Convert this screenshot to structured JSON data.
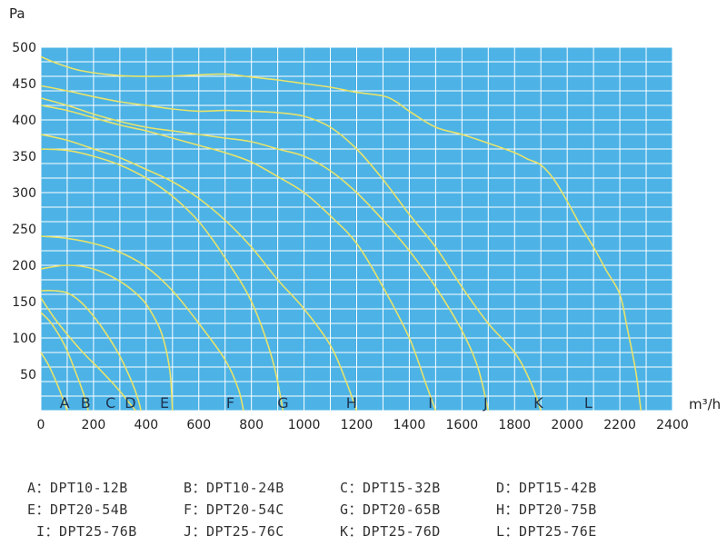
{
  "chart_data": {
    "type": "line",
    "title": "",
    "xlabel": "m³/h",
    "ylabel": "Pa",
    "xlim": [
      0,
      2400
    ],
    "ylim": [
      0,
      500
    ],
    "x_ticks": [
      "0",
      "200",
      "400",
      "600",
      "800",
      "1000",
      "1200",
      "1400",
      "1600",
      "1800",
      "2000",
      "2200",
      "2400"
    ],
    "y_ticks": [
      "50",
      "100",
      "150",
      "200",
      "250",
      "300",
      "350",
      "400",
      "450",
      "500"
    ],
    "grid": true,
    "background_color": "#4db3e6",
    "grid_color": "#ffffff",
    "line_color": "#e8e36b",
    "series": [
      {
        "name": "A",
        "label": "A",
        "label_x": 90,
        "points": [
          [
            0,
            80
          ],
          [
            30,
            62
          ],
          [
            60,
            38
          ],
          [
            85,
            15
          ],
          [
            100,
            0
          ]
        ]
      },
      {
        "name": "B",
        "label": "B",
        "label_x": 170,
        "points": [
          [
            0,
            135
          ],
          [
            40,
            120
          ],
          [
            90,
            90
          ],
          [
            130,
            55
          ],
          [
            165,
            20
          ],
          [
            180,
            0
          ]
        ]
      },
      {
        "name": "C",
        "label": "C",
        "label_x": 265,
        "points": [
          [
            0,
            155
          ],
          [
            50,
            128
          ],
          [
            100,
            105
          ],
          [
            160,
            80
          ],
          [
            220,
            58
          ],
          [
            280,
            35
          ],
          [
            320,
            18
          ],
          [
            360,
            0
          ]
        ]
      },
      {
        "name": "D",
        "label": "D",
        "label_x": 340,
        "points": [
          [
            0,
            165
          ],
          [
            50,
            165
          ],
          [
            100,
            162
          ],
          [
            150,
            150
          ],
          [
            200,
            130
          ],
          [
            250,
            105
          ],
          [
            300,
            75
          ],
          [
            345,
            40
          ],
          [
            370,
            15
          ],
          [
            380,
            0
          ]
        ]
      },
      {
        "name": "E",
        "label": "E",
        "label_x": 470,
        "points": [
          [
            0,
            195
          ],
          [
            100,
            200
          ],
          [
            200,
            195
          ],
          [
            300,
            178
          ],
          [
            380,
            155
          ],
          [
            420,
            135
          ],
          [
            460,
            105
          ],
          [
            490,
            55
          ],
          [
            500,
            0
          ]
        ]
      },
      {
        "name": "F",
        "label": "F",
        "label_x": 720,
        "points": [
          [
            0,
            240
          ],
          [
            100,
            237
          ],
          [
            200,
            230
          ],
          [
            300,
            218
          ],
          [
            400,
            198
          ],
          [
            500,
            165
          ],
          [
            600,
            120
          ],
          [
            700,
            70
          ],
          [
            750,
            30
          ],
          [
            770,
            0
          ]
        ]
      },
      {
        "name": "G",
        "label": "G",
        "label_x": 920,
        "points": [
          [
            0,
            360
          ],
          [
            100,
            358
          ],
          [
            200,
            350
          ],
          [
            300,
            338
          ],
          [
            400,
            320
          ],
          [
            500,
            295
          ],
          [
            600,
            260
          ],
          [
            700,
            210
          ],
          [
            800,
            150
          ],
          [
            880,
            70
          ],
          [
            920,
            0
          ]
        ]
      },
      {
        "name": "H",
        "label": "H",
        "label_x": 1180,
        "points": [
          [
            0,
            380
          ],
          [
            100,
            372
          ],
          [
            200,
            360
          ],
          [
            300,
            348
          ],
          [
            400,
            332
          ],
          [
            500,
            315
          ],
          [
            600,
            292
          ],
          [
            700,
            262
          ],
          [
            800,
            225
          ],
          [
            900,
            180
          ],
          [
            1000,
            140
          ],
          [
            1100,
            90
          ],
          [
            1160,
            40
          ],
          [
            1200,
            0
          ]
        ]
      },
      {
        "name": "I",
        "label": "I",
        "label_x": 1480,
        "points": [
          [
            0,
            420
          ],
          [
            100,
            413
          ],
          [
            200,
            403
          ],
          [
            300,
            393
          ],
          [
            400,
            385
          ],
          [
            500,
            375
          ],
          [
            600,
            365
          ],
          [
            700,
            355
          ],
          [
            800,
            342
          ],
          [
            900,
            322
          ],
          [
            1000,
            300
          ],
          [
            1100,
            268
          ],
          [
            1200,
            230
          ],
          [
            1300,
            170
          ],
          [
            1400,
            100
          ],
          [
            1460,
            40
          ],
          [
            1500,
            0
          ]
        ]
      },
      {
        "name": "J",
        "label": "J",
        "label_x": 1690,
        "points": [
          [
            0,
            430
          ],
          [
            100,
            420
          ],
          [
            200,
            408
          ],
          [
            300,
            398
          ],
          [
            400,
            390
          ],
          [
            500,
            385
          ],
          [
            600,
            380
          ],
          [
            700,
            375
          ],
          [
            800,
            370
          ],
          [
            900,
            360
          ],
          [
            1000,
            350
          ],
          [
            1100,
            330
          ],
          [
            1200,
            300
          ],
          [
            1300,
            262
          ],
          [
            1400,
            220
          ],
          [
            1500,
            170
          ],
          [
            1600,
            110
          ],
          [
            1660,
            60
          ],
          [
            1700,
            0
          ]
        ]
      },
      {
        "name": "K",
        "label": "K",
        "label_x": 1890,
        "points": [
          [
            0,
            447
          ],
          [
            100,
            440
          ],
          [
            200,
            432
          ],
          [
            300,
            425
          ],
          [
            400,
            420
          ],
          [
            500,
            415
          ],
          [
            600,
            412
          ],
          [
            700,
            413
          ],
          [
            800,
            412
          ],
          [
            900,
            410
          ],
          [
            1000,
            405
          ],
          [
            1100,
            390
          ],
          [
            1200,
            360
          ],
          [
            1300,
            318
          ],
          [
            1400,
            270
          ],
          [
            1500,
            225
          ],
          [
            1600,
            170
          ],
          [
            1700,
            120
          ],
          [
            1800,
            80
          ],
          [
            1860,
            40
          ],
          [
            1900,
            0
          ]
        ]
      },
      {
        "name": "L",
        "label": "L",
        "label_x": 2080,
        "points": [
          [
            0,
            487
          ],
          [
            60,
            478
          ],
          [
            150,
            468
          ],
          [
            300,
            461
          ],
          [
            450,
            460
          ],
          [
            600,
            462
          ],
          [
            700,
            463
          ],
          [
            800,
            459
          ],
          [
            900,
            455
          ],
          [
            1000,
            450
          ],
          [
            1100,
            445
          ],
          [
            1200,
            438
          ],
          [
            1300,
            433
          ],
          [
            1350,
            425
          ],
          [
            1400,
            412
          ],
          [
            1500,
            390
          ],
          [
            1600,
            380
          ],
          [
            1700,
            368
          ],
          [
            1800,
            355
          ],
          [
            1850,
            346
          ],
          [
            1900,
            338
          ],
          [
            1950,
            318
          ],
          [
            2000,
            288
          ],
          [
            2050,
            255
          ],
          [
            2100,
            225
          ],
          [
            2150,
            192
          ],
          [
            2200,
            160
          ],
          [
            2230,
            110
          ],
          [
            2260,
            55
          ],
          [
            2280,
            0
          ]
        ]
      }
    ],
    "legend_entries": [
      [
        "A：DPT10-12B",
        "B：DPT10-24B",
        "C：DPT15-32B",
        "D：DPT15-42B"
      ],
      [
        "E：DPT20-54B",
        "F：DPT20-54C",
        "G：DPT20-65B",
        "H：DPT20-75B"
      ],
      [
        "I：DPT25-76B",
        "J：DPT25-76C",
        "K：DPT25-76D",
        "L：DPT25-76E"
      ]
    ]
  }
}
